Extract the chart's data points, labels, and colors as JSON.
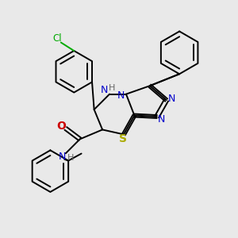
{
  "background_color": "#e9e9e9",
  "fig_width": 3.0,
  "fig_height": 3.0,
  "dpi": 100,
  "xlim": [
    0,
    10
  ],
  "ylim": [
    0,
    10
  ],
  "lw": 1.4
}
